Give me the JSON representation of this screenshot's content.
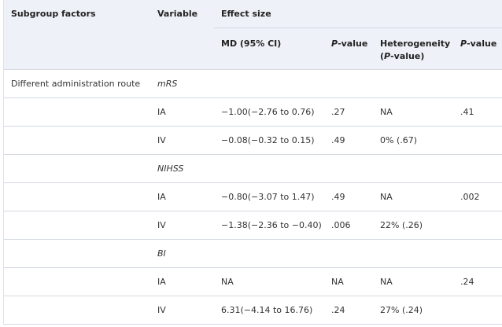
{
  "headers": {
    "subgroup": "Subgroup factors",
    "variable": "Variable",
    "effect_size": "Effect size",
    "md": "MD (95% CI)",
    "p_italic": "P",
    "p_suffix": "-value",
    "heterogeneity": "Heterogeneity",
    "het_p_open": "(",
    "het_p_italic": "P",
    "het_p_close": "-value)",
    "p2_italic": "P",
    "p2_suffix": "-value"
  },
  "subgroup": "Different administration route",
  "rows": [
    {
      "variable": "mRS",
      "italic": true,
      "md": "",
      "p": "",
      "het": "",
      "p2": ""
    },
    {
      "variable": "IA",
      "md": "−1.00(−2.76 to 0.76)",
      "p": ".27",
      "het": "NA",
      "p2": ".41"
    },
    {
      "variable": "IV",
      "md": "−0.08(−0.32 to 0.15)",
      "p": ".49",
      "het": "0% (.67)",
      "p2": ""
    },
    {
      "variable": "NIHSS",
      "italic": true,
      "md": "",
      "p": "",
      "het": "",
      "p2": ""
    },
    {
      "variable": "IA",
      "md": "−0.80(−3.07 to 1.47)",
      "p": ".49",
      "het": "NA",
      "p2": ".002"
    },
    {
      "variable": "IV",
      "md": "−1.38(−2.36 to −0.40)",
      "p": ".006",
      "het": "22% (.26)",
      "p2": ""
    },
    {
      "variable": "BI",
      "italic": true,
      "md": "",
      "p": "",
      "het": "",
      "p2": ""
    },
    {
      "variable": "IA",
      "md": "NA",
      "p": "NA",
      "het": "NA",
      "p2": ".24"
    },
    {
      "variable": "IV",
      "md": "6.31(−4.14 to 16.76)",
      "p": ".24",
      "het": "27% (.24)",
      "p2": ""
    }
  ]
}
